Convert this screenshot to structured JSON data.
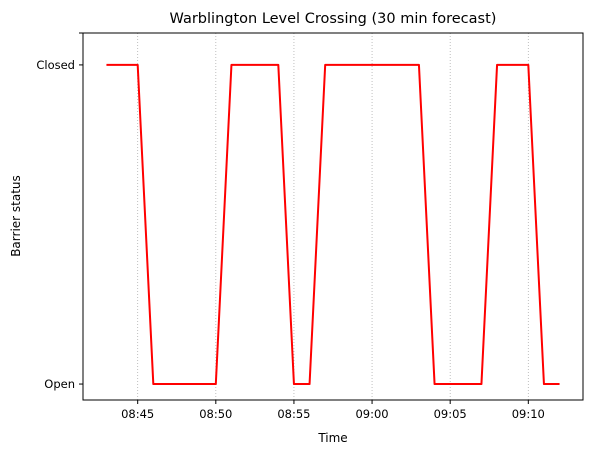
{
  "chart_data": {
    "type": "line",
    "title": "Warblington Level Crossing (30 min forecast)",
    "xlabel": "Time",
    "ylabel": "Barrier status",
    "x_tick_labels": [
      "08:45",
      "08:50",
      "08:55",
      "09:00",
      "09:05",
      "09:10"
    ],
    "y_tick_labels": [
      "Open",
      "Closed"
    ],
    "ylim": [
      -0.05,
      1.1
    ],
    "xlim": [
      "08:41:30",
      "09:13:30"
    ],
    "grid": "x-only, dotted",
    "series": [
      {
        "color": "#ff0000",
        "x": [
          "08:43",
          "08:45",
          "08:46",
          "08:50",
          "08:51",
          "08:54",
          "08:55",
          "08:56",
          "08:57",
          "09:03",
          "09:04",
          "09:07",
          "09:08",
          "09:10",
          "09:11",
          "09:12"
        ],
        "y": [
          1,
          1,
          0,
          0,
          1,
          1,
          0,
          0,
          1,
          1,
          0,
          0,
          1,
          1,
          0,
          0
        ]
      }
    ]
  }
}
